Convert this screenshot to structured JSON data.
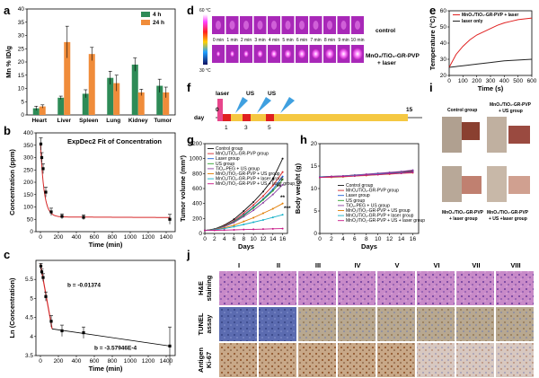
{
  "panels": {
    "a": "a",
    "b": "b",
    "c": "c",
    "d": "d",
    "e": "e",
    "f": "f",
    "g": "g",
    "h": "h",
    "i": "i",
    "j": "j"
  },
  "chart_data": [
    {
      "panel": "a",
      "type": "bar",
      "ylabel": "Mn % ID/g",
      "ylim": [
        0,
        40
      ],
      "yticks": [
        0,
        5,
        10,
        15,
        20,
        25,
        30,
        35,
        40
      ],
      "categories": [
        "Heart",
        "Liver",
        "Spleen",
        "Lung",
        "Kidney",
        "Tumor"
      ],
      "legend_position": "top-right",
      "series": [
        {
          "name": "4 h",
          "color": "#2e8b57",
          "values": [
            2.5,
            6.5,
            8,
            14,
            19,
            11
          ],
          "errors": [
            0.8,
            0.6,
            1.5,
            2.5,
            2.5,
            2.5
          ]
        },
        {
          "name": "24 h",
          "color": "#f08c3a",
          "values": [
            3.2,
            27.5,
            23,
            12,
            8.5,
            8.5
          ],
          "errors": [
            0.6,
            6,
            2.5,
            3,
            1.2,
            2
          ]
        }
      ]
    },
    {
      "panel": "b",
      "type": "scatter",
      "title": "ExpDec2 Fit of Concentration",
      "xlabel": "Time (min)",
      "ylabel": "Concentration (ppm)",
      "xlim": [
        -50,
        1500
      ],
      "ylim": [
        0,
        400
      ],
      "xticks": [
        0,
        200,
        400,
        600,
        800,
        1000,
        1200,
        1400
      ],
      "yticks": [
        0,
        50,
        100,
        150,
        200,
        250,
        300,
        350,
        400
      ],
      "points": [
        {
          "x": 5,
          "y": 355,
          "err": 25
        },
        {
          "x": 15,
          "y": 300,
          "err": 20
        },
        {
          "x": 30,
          "y": 255,
          "err": 20
        },
        {
          "x": 60,
          "y": 160,
          "err": 20
        },
        {
          "x": 120,
          "y": 80,
          "err": 15
        },
        {
          "x": 240,
          "y": 62,
          "err": 10
        },
        {
          "x": 480,
          "y": 58,
          "err": 10
        },
        {
          "x": 1440,
          "y": 50,
          "err": 20
        }
      ]
    },
    {
      "panel": "c",
      "type": "scatter",
      "xlabel": "Time (min)",
      "ylabel": "Ln (Concentration)",
      "xlim": [
        -50,
        1500
      ],
      "ylim": [
        3.5,
        6.0
      ],
      "xticks": [
        0,
        200,
        400,
        600,
        800,
        1000,
        1200,
        1400
      ],
      "yticks": [
        3.5,
        4.0,
        4.5,
        5.0,
        5.5
      ],
      "annotations": [
        "b = -0.01374",
        "b = -3.57946E-4"
      ],
      "points": [
        {
          "x": 5,
          "y": 5.85,
          "err": 0.07
        },
        {
          "x": 15,
          "y": 5.7,
          "err": 0.07
        },
        {
          "x": 30,
          "y": 5.55,
          "err": 0.1
        },
        {
          "x": 60,
          "y": 5.05,
          "err": 0.12
        },
        {
          "x": 120,
          "y": 4.4,
          "err": 0.15
        },
        {
          "x": 240,
          "y": 4.15,
          "err": 0.15
        },
        {
          "x": 480,
          "y": 4.1,
          "err": 0.15
        },
        {
          "x": 1440,
          "y": 3.75,
          "err": 0.5
        }
      ]
    },
    {
      "panel": "e",
      "type": "line",
      "xlabel": "Time (s)",
      "ylabel": "Temperature (°C)",
      "xlim": [
        0,
        600
      ],
      "ylim": [
        20,
        60
      ],
      "xticks": [
        0,
        100,
        200,
        300,
        400,
        500,
        600
      ],
      "yticks": [
        20,
        30,
        40,
        50,
        60
      ],
      "series": [
        {
          "name": "MnO₂/TiO₂-GR-PVP + laser",
          "color": "#e02020",
          "x": [
            0,
            50,
            100,
            150,
            200,
            250,
            300,
            350,
            400,
            450,
            500,
            550,
            600
          ],
          "y": [
            25,
            33,
            38,
            42,
            45,
            47,
            49,
            51,
            52.5,
            53.5,
            54.5,
            55,
            55.5
          ]
        },
        {
          "name": "laser only",
          "color": "#222222",
          "x": [
            0,
            100,
            200,
            300,
            400,
            500,
            600
          ],
          "y": [
            25,
            26,
            27,
            28,
            29,
            29.5,
            30
          ]
        }
      ]
    },
    {
      "panel": "g",
      "type": "line",
      "xlabel": "Days",
      "ylabel": "Tumor volume (mm³)",
      "xlim": [
        0,
        17
      ],
      "ylim": [
        0,
        1200
      ],
      "xticks": [
        0,
        2,
        4,
        6,
        8,
        10,
        12,
        14,
        16
      ],
      "yticks": [
        0,
        200,
        400,
        600,
        800,
        1000,
        1200
      ],
      "annotations": [
        "**",
        "**",
        "***"
      ],
      "series": [
        {
          "name": "Control group",
          "color": "#111111",
          "values": [
            40,
            60,
            110,
            190,
            300,
            420,
            560,
            730,
            1000
          ]
        },
        {
          "name": "MnO₂/TiO₂-GR-PVP group",
          "color": "#d62728",
          "values": [
            40,
            55,
            100,
            170,
            270,
            380,
            500,
            640,
            820
          ]
        },
        {
          "name": "Laser group",
          "color": "#1f5fd6",
          "values": [
            40,
            55,
            95,
            160,
            250,
            350,
            460,
            590,
            760
          ]
        },
        {
          "name": "US group",
          "color": "#2ca02c",
          "values": [
            40,
            55,
            95,
            155,
            240,
            340,
            450,
            570,
            720
          ]
        },
        {
          "name": "TiO₂-PEG + US group",
          "color": "#8b3fa0",
          "values": [
            40,
            52,
            90,
            145,
            225,
            310,
            410,
            520,
            650
          ]
        },
        {
          "name": "MnO₂/TiO₂-GR-PVP + US group",
          "color": "#e07b00",
          "values": [
            40,
            50,
            75,
            110,
            160,
            210,
            270,
            330,
            400
          ]
        },
        {
          "name": "MnO₂/TiO₂-GR-PVP + laser group",
          "color": "#17b1c8",
          "values": [
            40,
            48,
            65,
            90,
            120,
            150,
            180,
            215,
            250
          ]
        },
        {
          "name": "MnO₂/TiO₂-GR-PVP + US + laser group",
          "color": "#c71585",
          "values": [
            40,
            42,
            45,
            48,
            52,
            55,
            58,
            62,
            65
          ]
        }
      ],
      "x": [
        0,
        2,
        4,
        6,
        8,
        10,
        12,
        14,
        16
      ]
    },
    {
      "panel": "h",
      "type": "line",
      "xlabel": "Days",
      "ylabel": "Body weight (g)",
      "xlim": [
        0,
        17
      ],
      "ylim": [
        0,
        20
      ],
      "xticks": [
        0,
        2,
        4,
        6,
        8,
        10,
        12,
        14,
        16
      ],
      "yticks": [
        0,
        5,
        10,
        15,
        20
      ],
      "x": [
        0,
        2,
        4,
        6,
        8,
        10,
        12,
        14,
        16
      ],
      "series": [
        {
          "name": "Control group",
          "color": "#111111",
          "values": [
            12.6,
            12.7,
            12.8,
            13.0,
            13.1,
            13.3,
            13.5,
            13.7,
            14.0
          ]
        },
        {
          "name": "MnO₂/TiO₂-GR-PVP group",
          "color": "#d62728",
          "values": [
            12.5,
            12.6,
            12.7,
            12.9,
            13.0,
            13.2,
            13.4,
            13.6,
            13.8
          ]
        },
        {
          "name": "Laser group",
          "color": "#1f5fd6",
          "values": [
            12.6,
            12.6,
            12.8,
            12.9,
            13.1,
            13.2,
            13.4,
            13.5,
            13.7
          ]
        },
        {
          "name": "US group",
          "color": "#2ca02c",
          "values": [
            12.5,
            12.6,
            12.7,
            12.8,
            13.0,
            13.1,
            13.3,
            13.5,
            13.6
          ]
        },
        {
          "name": "TiO₂-PEG + US group",
          "color": "#8b3fa0",
          "values": [
            12.6,
            12.7,
            12.8,
            13.0,
            13.2,
            13.4,
            13.6,
            13.8,
            14.1
          ]
        },
        {
          "name": "MnO₂/TiO₂-GR-PVP + US group",
          "color": "#e07b00",
          "values": [
            12.5,
            12.5,
            12.6,
            12.8,
            12.9,
            13.1,
            13.2,
            13.4,
            13.5
          ]
        },
        {
          "name": "MnO₂/TiO₂-GR-PVP + laser group",
          "color": "#17b1c8",
          "values": [
            12.6,
            12.6,
            12.7,
            12.9,
            13.0,
            13.2,
            13.3,
            13.5,
            13.6
          ]
        },
        {
          "name": "MnO₂/TiO₂-GR-PVP + US + laser group",
          "color": "#c71585",
          "values": [
            12.5,
            12.6,
            12.7,
            12.8,
            13.0,
            13.1,
            13.3,
            13.4,
            13.6
          ]
        }
      ]
    }
  ],
  "thermal": {
    "scale_max": "60 °C",
    "scale_min": "30 °C",
    "row_labels": [
      "control",
      "MnO₂/TiO₂-GR-PVP",
      "+ laser"
    ],
    "times": [
      "0 min",
      "1 min",
      "2 min",
      "3 min",
      "4 min",
      "5 min",
      "6 min",
      "7 min",
      "8 min",
      "9 min",
      "10 min"
    ]
  },
  "schedule": {
    "axis_label": "day",
    "start": "0",
    "end": "15",
    "laser_label": "laser",
    "us_label_1": "US",
    "us_label_2": "US",
    "day_marks": [
      "1",
      "3",
      "5"
    ]
  },
  "photos": {
    "labels": [
      "Control group",
      "MnO₂/TiO₂-GR-PVP",
      "+ US group",
      "MnO₂/TiO₂-GR-PVP",
      "+ laser group",
      "MnO₂/TiO₂-GR-PVP",
      "+ US +laser group"
    ]
  },
  "histology": {
    "columns": [
      "I",
      "II",
      "III",
      "IV",
      "V",
      "VI",
      "VII",
      "VIII"
    ],
    "rows": [
      {
        "l1": "H&E",
        "l2": "staining"
      },
      {
        "l1": "TUNEL",
        "l2": "assay"
      },
      {
        "l1": "Antigen",
        "l2": "Ki-67"
      }
    ]
  }
}
